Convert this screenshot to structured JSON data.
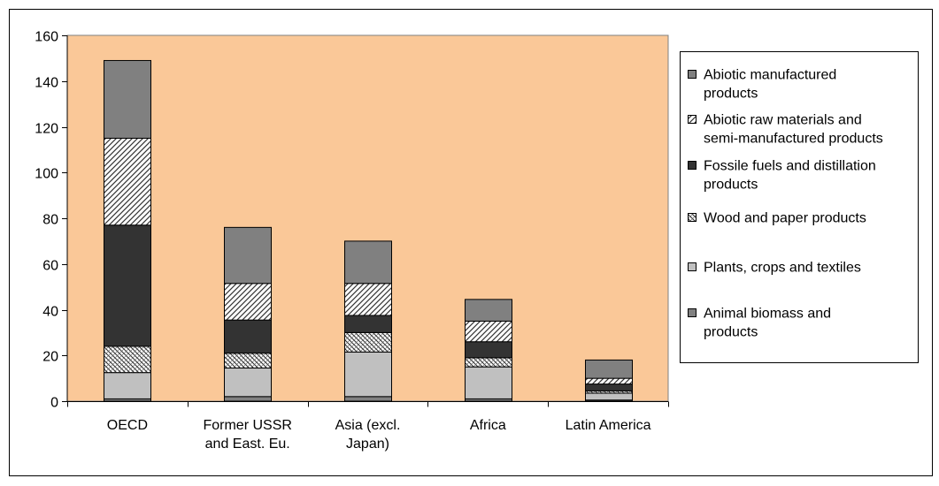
{
  "chart_data": {
    "type": "bar",
    "stacked": true,
    "categories": [
      [
        "OECD"
      ],
      [
        "Former USSR",
        "and East. Eu."
      ],
      [
        "Asia (excl.",
        "Japan)"
      ],
      [
        "Africa"
      ],
      [
        "Latin America"
      ]
    ],
    "ylim": [
      0,
      160
    ],
    "yticks": [
      0,
      20,
      40,
      60,
      80,
      100,
      120,
      140,
      160
    ],
    "grid": false,
    "legend_position": "right",
    "plot_background": "#FAC898",
    "series": [
      {
        "name": [
          "Animal biomass and",
          "products"
        ],
        "values": [
          1,
          2,
          2,
          1,
          0.5
        ],
        "color": "#808080",
        "pattern": "solid"
      },
      {
        "name": [
          "Plants, crops and textiles"
        ],
        "values": [
          11.5,
          12.5,
          19.5,
          14,
          3
        ],
        "color": "#C0C0C0",
        "pattern": "solid"
      },
      {
        "name": [
          "Wood and paper products"
        ],
        "values": [
          11.5,
          6.5,
          8.5,
          4,
          1
        ],
        "color": "#FFFFFF",
        "pattern": "crosshatch"
      },
      {
        "name": [
          "Fossile fuels and distillation",
          "products"
        ],
        "values": [
          53,
          14.5,
          7.5,
          7,
          3
        ],
        "color": "#333333",
        "pattern": "solid"
      },
      {
        "name": [
          "Abiotic raw  materials and",
          "semi-manufactured products"
        ],
        "values": [
          38,
          16,
          14,
          9,
          2.5
        ],
        "color": "#FFFFFF",
        "pattern": "diagonal"
      },
      {
        "name": [
          "Abiotic manufactured",
          "products"
        ],
        "values": [
          34,
          24.5,
          18.5,
          9.5,
          8
        ],
        "color": "#808080",
        "pattern": "solid"
      }
    ],
    "legend_order": [
      5,
      4,
      3,
      2,
      1,
      0
    ]
  }
}
